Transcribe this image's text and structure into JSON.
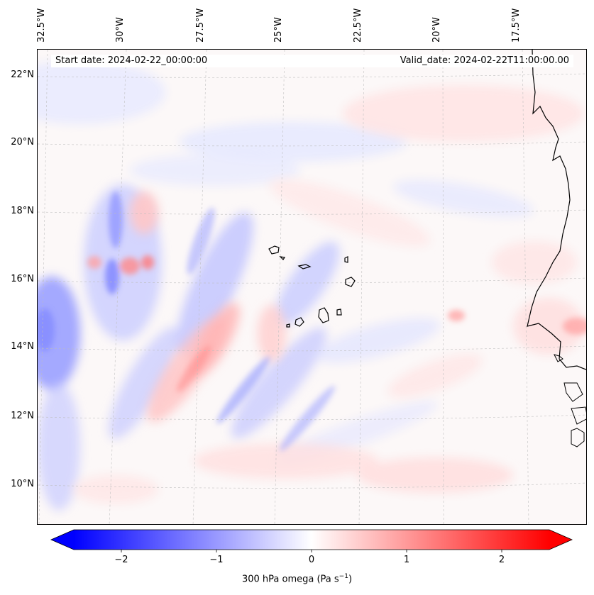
{
  "map": {
    "start_date": "Start date: 2024-02-22_00:00:00",
    "valid_date": "Valid_date: 2024-02-22T11:00:00.00",
    "lon_labels": [
      "32.5°W",
      "30°W",
      "27.5°W",
      "25°W",
      "22.5°W",
      "20°W",
      "17.5°W"
    ],
    "lat_labels": [
      "22°N",
      "20°N",
      "18°N",
      "16°N",
      "14°N",
      "12°N",
      "10°N"
    ],
    "lon_values": [
      -32.5,
      -30,
      -27.5,
      -25,
      -22.5,
      -20,
      -17.5
    ],
    "lat_values": [
      22,
      20,
      18,
      16,
      14,
      12,
      10
    ],
    "lon_range": [
      -33.0,
      -16.0
    ],
    "lat_range": [
      8.9,
      22.8
    ]
  },
  "colorbar": {
    "ticks": [
      "−2",
      "−1",
      "0",
      "1",
      "2"
    ],
    "tick_values": [
      -2,
      -1,
      0,
      1,
      2
    ],
    "range": [
      -2.5,
      2.5
    ],
    "label_main": "300 hPa omega (Pa s",
    "label_exp": "−1",
    "label_end": ")",
    "colors": {
      "negative": "#0000ff",
      "zero": "#ffffff",
      "positive": "#ff0000"
    }
  }
}
